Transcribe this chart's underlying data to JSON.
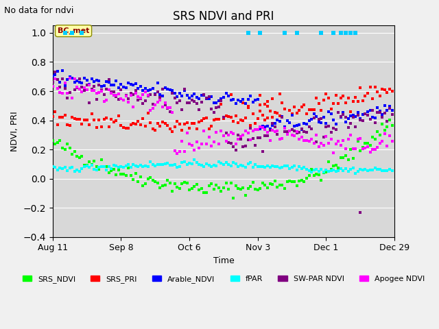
{
  "title": "SRS NDVI and PRI",
  "xlabel": "Time",
  "ylabel": "NDVI, PRI",
  "no_data_text": "No data for ndvi",
  "bc_met_label": "BC_met",
  "ylim": [
    -0.4,
    1.05
  ],
  "yticks": [
    -0.4,
    -0.2,
    0.0,
    0.2,
    0.4,
    0.6,
    0.8,
    1.0
  ],
  "xtick_labels": [
    "Aug 11",
    "Sep 8",
    "Oct 6",
    "Nov 3",
    "Dec 1",
    "Dec 29"
  ],
  "series_colors": {
    "SRS_NDVI": "#00ff00",
    "SRS_PRI": "#ff0000",
    "Arable_NDVI": "#0000ff",
    "fPAR": "#00ffff",
    "SW-PAR_NDVI": "#800080",
    "Apogee_NDVI": "#ff00ff"
  }
}
